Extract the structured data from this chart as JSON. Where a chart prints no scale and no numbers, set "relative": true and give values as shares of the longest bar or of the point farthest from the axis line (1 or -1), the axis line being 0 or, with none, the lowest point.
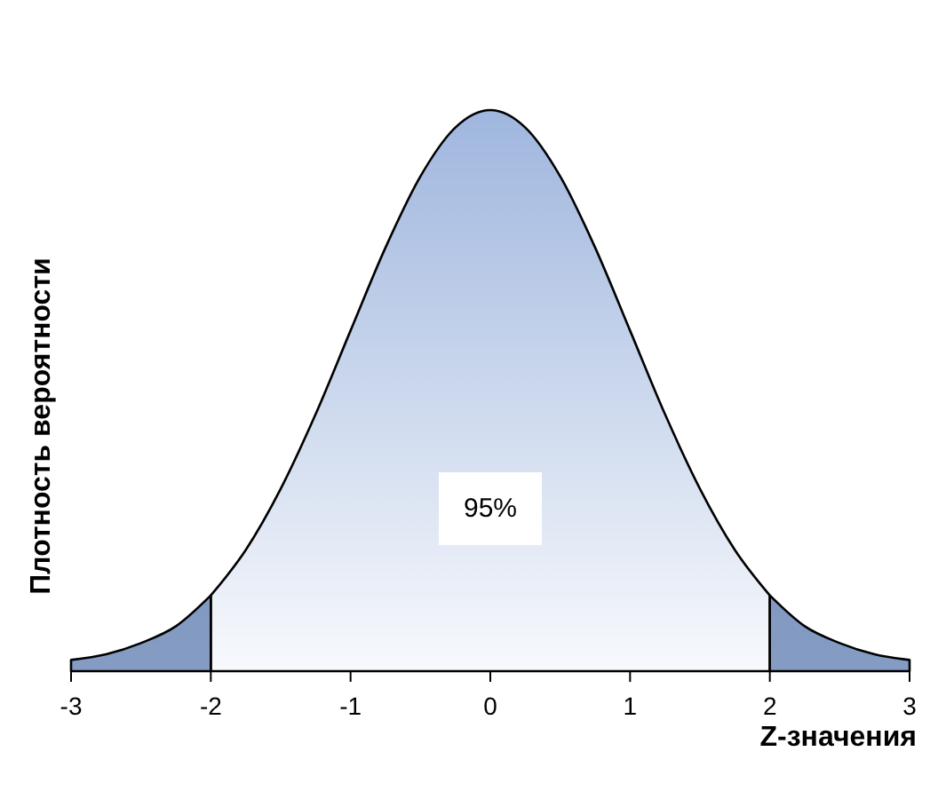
{
  "chart_data": {
    "type": "area",
    "relative": true,
    "xlabel": "Z-значения",
    "ylabel": "Плотность вероятности",
    "xlim": [
      -3,
      3
    ],
    "xticks": [
      -3,
      -2,
      -1,
      0,
      1,
      2,
      3
    ],
    "annotations": [
      "95%"
    ],
    "series": [
      {
        "color": "#6f8ab8",
        "x": [
          -3,
          -2.75,
          -2.5,
          -2.25,
          -2
        ],
        "values": [
          0.02,
          0.03,
          0.05,
          0.08,
          0.135
        ]
      },
      {
        "color": "#9fb6de",
        "x": [
          -2,
          -1.75,
          -1.5,
          -1.25,
          -1,
          -0.75,
          -0.5,
          -0.25,
          0,
          0.25,
          0.5,
          0.75,
          1,
          1.25,
          1.5,
          1.75,
          2
        ],
        "values": [
          0.135,
          0.216,
          0.325,
          0.458,
          0.607,
          0.755,
          0.882,
          0.969,
          1,
          0.969,
          0.882,
          0.755,
          0.607,
          0.458,
          0.325,
          0.216,
          0.135
        ]
      },
      {
        "color": "#6f8ab8",
        "x": [
          2,
          2.25,
          2.5,
          2.75,
          3
        ],
        "values": [
          0.135,
          0.08,
          0.05,
          0.03,
          0.02
        ]
      }
    ]
  }
}
